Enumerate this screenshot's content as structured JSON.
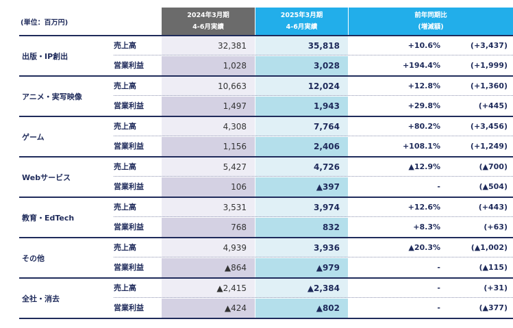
{
  "unit_label": "(単位：百万円)",
  "headers": {
    "prev": {
      "line1": "2024年3月期",
      "line2": "4-6月実績"
    },
    "curr": {
      "line1": "2025年3月期",
      "line2": "4-6月実績"
    },
    "yoy": {
      "line1": "前年同期比",
      "line2": "(増減額)"
    }
  },
  "segments": [
    {
      "name": "出版・IP創出",
      "rows": [
        {
          "label": "売上高",
          "prev": "32,381",
          "curr": "35,818",
          "pct": "+10.6%",
          "diff": "(+3,437)"
        },
        {
          "label": "営業利益",
          "prev": "1,028",
          "curr": "3,028",
          "pct": "+194.4%",
          "diff": "(+1,999)"
        }
      ]
    },
    {
      "name": "アニメ・実写映像",
      "rows": [
        {
          "label": "売上高",
          "prev": "10,663",
          "curr": "12,024",
          "pct": "+12.8%",
          "diff": "(+1,360)"
        },
        {
          "label": "営業利益",
          "prev": "1,497",
          "curr": "1,943",
          "pct": "+29.8%",
          "diff": "(+445)"
        }
      ]
    },
    {
      "name": "ゲーム",
      "rows": [
        {
          "label": "売上高",
          "prev": "4,308",
          "curr": "7,764",
          "pct": "+80.2%",
          "diff": "(+3,456)"
        },
        {
          "label": "営業利益",
          "prev": "1,156",
          "curr": "2,406",
          "pct": "+108.1%",
          "diff": "(+1,249)"
        }
      ]
    },
    {
      "name": "Webサービス",
      "rows": [
        {
          "label": "売上高",
          "prev": "5,427",
          "curr": "4,726",
          "pct": "▲12.9%",
          "diff": "(▲700)"
        },
        {
          "label": "営業利益",
          "prev": "106",
          "curr": "▲397",
          "pct": "-",
          "diff": "(▲504)"
        }
      ]
    },
    {
      "name": "教育・EdTech",
      "rows": [
        {
          "label": "売上高",
          "prev": "3,531",
          "curr": "3,974",
          "pct": "+12.6%",
          "diff": "(+443)"
        },
        {
          "label": "営業利益",
          "prev": "768",
          "curr": "832",
          "pct": "+8.3%",
          "diff": "(+63)"
        }
      ]
    },
    {
      "name": "その他",
      "rows": [
        {
          "label": "売上高",
          "prev": "4,939",
          "curr": "3,936",
          "pct": "▲20.3%",
          "diff": "(▲1,002)"
        },
        {
          "label": "営業利益",
          "prev": "▲864",
          "curr": "▲979",
          "pct": "-",
          "diff": "(▲115)"
        }
      ]
    },
    {
      "name": "全社・消去",
      "rows": [
        {
          "label": "売上高",
          "prev": "▲2,415",
          "curr": "▲2,384",
          "pct": "-",
          "diff": "(+31)"
        },
        {
          "label": "営業利益",
          "prev": "▲424",
          "curr": "▲802",
          "pct": "-",
          "diff": "(▲377)"
        }
      ]
    }
  ]
}
